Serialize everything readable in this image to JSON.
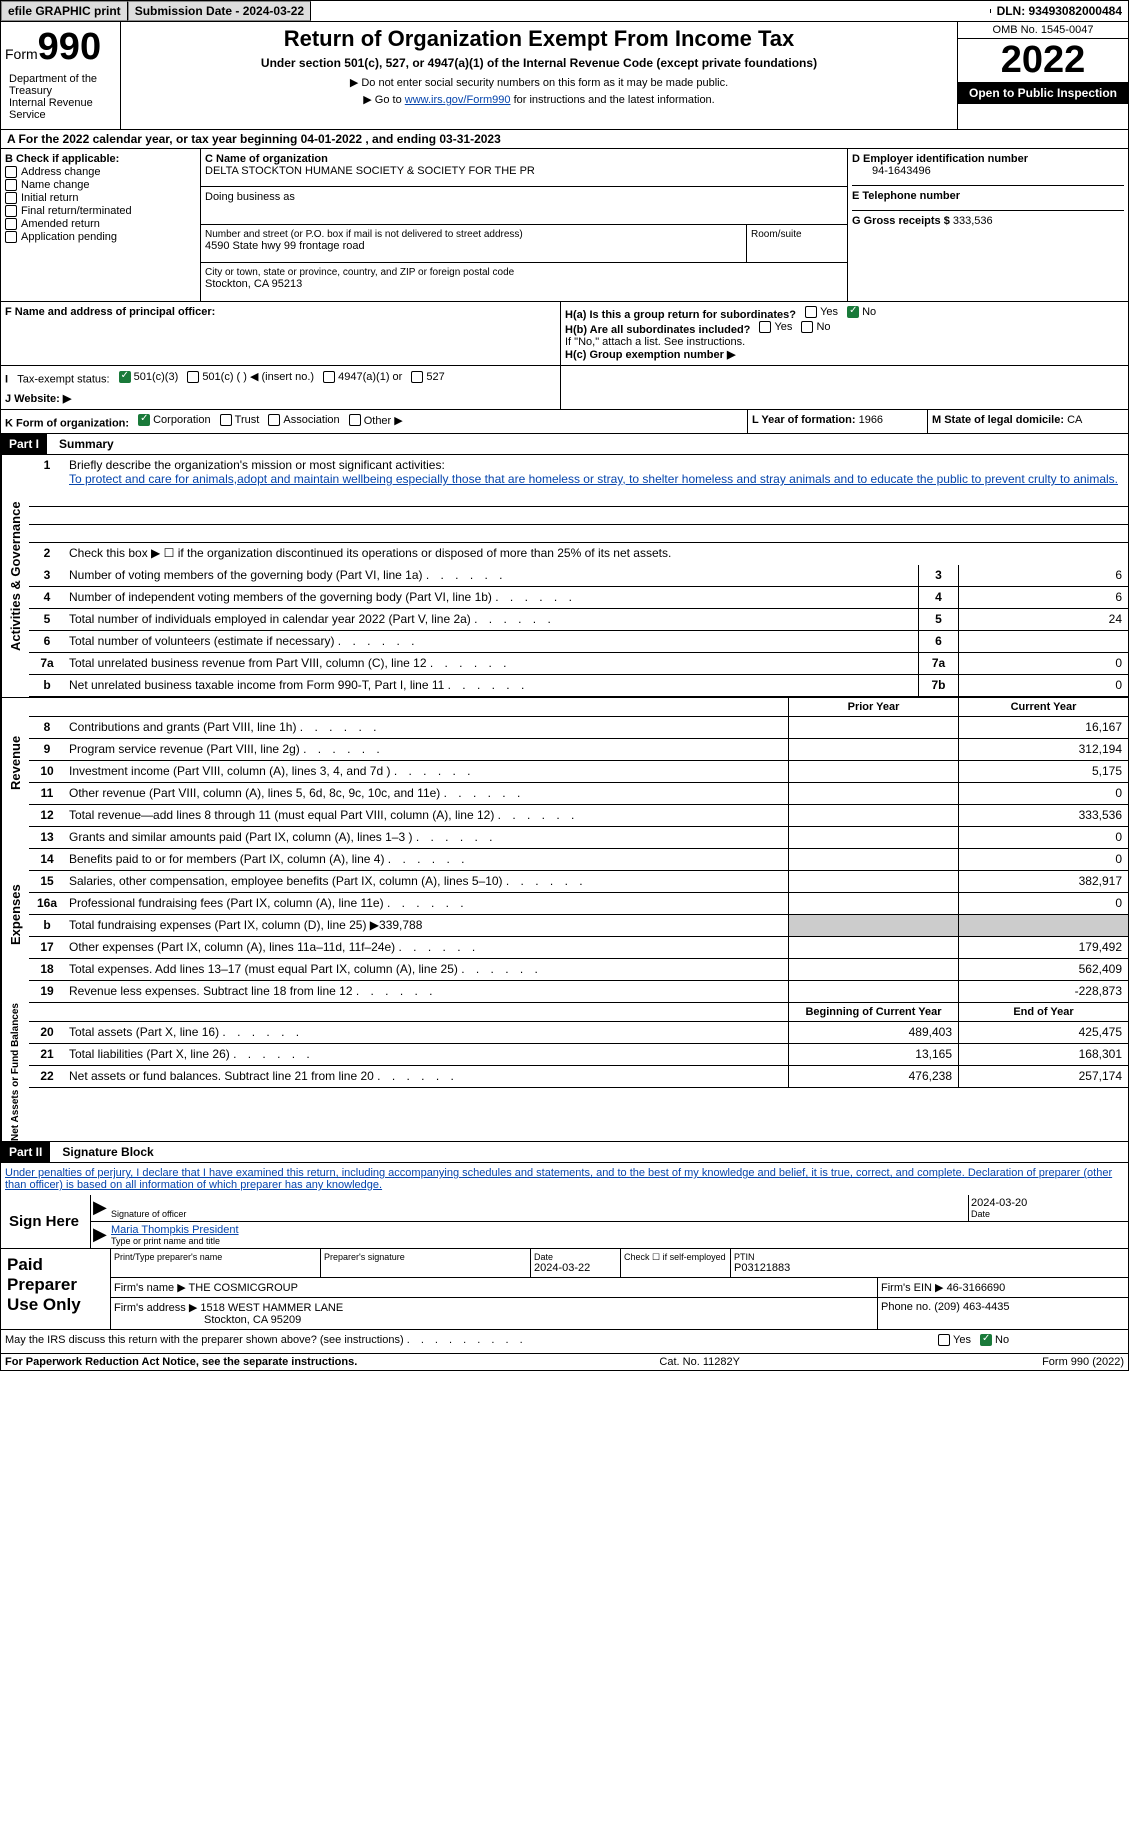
{
  "topbar": {
    "efile": "efile GRAPHIC print",
    "submission": "Submission Date - 2024-03-22",
    "dln": "DLN: 93493082000484"
  },
  "header": {
    "form_label": "Form",
    "form_number": "990",
    "title": "Return of Organization Exempt From Income Tax",
    "subtitle": "Under section 501(c), 527, or 4947(a)(1) of the Internal Revenue Code (except private foundations)",
    "note1": "▶ Do not enter social security numbers on this form as it may be made public.",
    "note2_pre": "▶ Go to ",
    "note2_link": "www.irs.gov/Form990",
    "note2_post": " for instructions and the latest information.",
    "dept": "Department of the Treasury\nInternal Revenue Service",
    "omb": "OMB No. 1545-0047",
    "year": "2022",
    "open_pub": "Open to Public Inspection"
  },
  "section_a": "A For the 2022 calendar year, or tax year beginning 04-01-2022    , and ending 03-31-2023",
  "box_b": {
    "label": "B Check if applicable:",
    "opts": [
      "Address change",
      "Name change",
      "Initial return",
      "Final return/terminated",
      "Amended return",
      "Application pending"
    ]
  },
  "box_c": {
    "name_label": "C Name of organization",
    "name": "DELTA STOCKTON HUMANE SOCIETY & SOCIETY FOR THE PR",
    "dba_label": "Doing business as",
    "dba": "",
    "addr_label": "Number and street (or P.O. box if mail is not delivered to street address)",
    "addr": "4590 State hwy 99 frontage road",
    "room_label": "Room/suite",
    "city_label": "City or town, state or province, country, and ZIP or foreign postal code",
    "city": "Stockton, CA  95213"
  },
  "box_d": {
    "label": "D Employer identification number",
    "ein": "94-1643496",
    "phone_label": "E Telephone number",
    "phone": "",
    "gross_label": "G Gross receipts $",
    "gross": "333,536"
  },
  "box_f": {
    "label": "F Name and address of principal officer:",
    "val": ""
  },
  "box_h": {
    "a_label": "H(a)  Is this a group return for subordinates?",
    "b_label": "H(b)  Are all subordinates included?",
    "b_note": "If \"No,\" attach a list. See instructions.",
    "c_label": "H(c)  Group exemption number ▶",
    "yes": "Yes",
    "no": "No"
  },
  "tax_status": {
    "label": "Tax-exempt status:",
    "o1": "501(c)(3)",
    "o2": "501(c) (  ) ◀ (insert no.)",
    "o3": "4947(a)(1) or",
    "o4": "527"
  },
  "website": {
    "label": "J   Website: ▶",
    "val": ""
  },
  "box_k": {
    "label": "K Form of organization:",
    "opts": [
      "Corporation",
      "Trust",
      "Association",
      "Other ▶"
    ]
  },
  "box_l": {
    "label": "L Year of formation:",
    "val": "1966"
  },
  "box_m": {
    "label": "M State of legal domicile:",
    "val": "CA"
  },
  "part1": {
    "hdr": "Part I",
    "title": "Summary",
    "side_a": "Activities & Governance",
    "side_r": "Revenue",
    "side_e": "Expenses",
    "side_n": "Net Assets or Fund Balances",
    "l1_label": "Briefly describe the organization's mission or most significant activities:",
    "l1_text": "To protect and care for animals,adopt and maintain wellbeing especially those that are homeless or stray, to shelter homeless and stray animals and to educate the public to prevent crulty to animals.",
    "l2": "Check this box ▶ ☐  if the organization discontinued its operations or disposed of more than 25% of its net assets.",
    "lines_a": [
      {
        "n": "3",
        "t": "Number of voting members of the governing body (Part VI, line 1a)",
        "c": "3",
        "v": "6"
      },
      {
        "n": "4",
        "t": "Number of independent voting members of the governing body (Part VI, line 1b)",
        "c": "4",
        "v": "6"
      },
      {
        "n": "5",
        "t": "Total number of individuals employed in calendar year 2022 (Part V, line 2a)",
        "c": "5",
        "v": "24"
      },
      {
        "n": "6",
        "t": "Total number of volunteers (estimate if necessary)",
        "c": "6",
        "v": ""
      },
      {
        "n": "7a",
        "t": "Total unrelated business revenue from Part VIII, column (C), line 12",
        "c": "7a",
        "v": "0"
      },
      {
        "n": "b",
        "t": "Net unrelated business taxable income from Form 990-T, Part I, line 11",
        "c": "7b",
        "v": "0"
      }
    ],
    "col_prior": "Prior Year",
    "col_current": "Current Year",
    "lines_r": [
      {
        "n": "8",
        "t": "Contributions and grants (Part VIII, line 1h)",
        "p": "",
        "v": "16,167"
      },
      {
        "n": "9",
        "t": "Program service revenue (Part VIII, line 2g)",
        "p": "",
        "v": "312,194"
      },
      {
        "n": "10",
        "t": "Investment income (Part VIII, column (A), lines 3, 4, and 7d )",
        "p": "",
        "v": "5,175"
      },
      {
        "n": "11",
        "t": "Other revenue (Part VIII, column (A), lines 5, 6d, 8c, 9c, 10c, and 11e)",
        "p": "",
        "v": "0"
      },
      {
        "n": "12",
        "t": "Total revenue—add lines 8 through 11 (must equal Part VIII, column (A), line 12)",
        "p": "",
        "v": "333,536"
      }
    ],
    "lines_e": [
      {
        "n": "13",
        "t": "Grants and similar amounts paid (Part IX, column (A), lines 1–3 )",
        "p": "",
        "v": "0"
      },
      {
        "n": "14",
        "t": "Benefits paid to or for members (Part IX, column (A), line 4)",
        "p": "",
        "v": "0"
      },
      {
        "n": "15",
        "t": "Salaries, other compensation, employee benefits (Part IX, column (A), lines 5–10)",
        "p": "",
        "v": "382,917"
      },
      {
        "n": "16a",
        "t": "Professional fundraising fees (Part IX, column (A), line 11e)",
        "p": "",
        "v": "0"
      },
      {
        "n": "b",
        "t": "Total fundraising expenses (Part IX, column (D), line 25) ▶339,788",
        "shade": true
      },
      {
        "n": "17",
        "t": "Other expenses (Part IX, column (A), lines 11a–11d, 11f–24e)",
        "p": "",
        "v": "179,492"
      },
      {
        "n": "18",
        "t": "Total expenses. Add lines 13–17 (must equal Part IX, column (A), line 25)",
        "p": "",
        "v": "562,409"
      },
      {
        "n": "19",
        "t": "Revenue less expenses. Subtract line 18 from line 12",
        "p": "",
        "v": "-228,873"
      }
    ],
    "col_begin": "Beginning of Current Year",
    "col_end": "End of Year",
    "lines_n": [
      {
        "n": "20",
        "t": "Total assets (Part X, line 16)",
        "p": "489,403",
        "v": "425,475"
      },
      {
        "n": "21",
        "t": "Total liabilities (Part X, line 26)",
        "p": "13,165",
        "v": "168,301"
      },
      {
        "n": "22",
        "t": "Net assets or fund balances. Subtract line 21 from line 20",
        "p": "476,238",
        "v": "257,174"
      }
    ]
  },
  "part2": {
    "hdr": "Part II",
    "title": "Signature Block",
    "penalties": "Under penalties of perjury, I declare that I have examined this return, including accompanying schedules and statements, and to the best of my knowledge and belief, it is true, correct, and complete. Declaration of preparer (other than officer) is based on all information of which preparer has any knowledge.",
    "sign_here": "Sign Here",
    "sig_officer_lbl": "Signature of officer",
    "sig_date": "2024-03-20",
    "sig_date_lbl": "Date",
    "sig_name": "Maria Thompkis President",
    "sig_name_lbl": "Type or print name and title",
    "paid": "Paid Preparer Use Only",
    "prep_name_lbl": "Print/Type preparer's name",
    "prep_sig_lbl": "Preparer's signature",
    "prep_date_lbl": "Date",
    "prep_date": "2024-03-22",
    "prep_check_lbl": "Check ☐ if self-employed",
    "ptin_lbl": "PTIN",
    "ptin": "P03121883",
    "firm_name_lbl": "Firm's name    ▶",
    "firm_name": "THE COSMICGROUP",
    "firm_ein_lbl": "Firm's EIN ▶",
    "firm_ein": "46-3166690",
    "firm_addr_lbl": "Firm's address ▶",
    "firm_addr": "1518 WEST HAMMER LANE",
    "firm_city": "Stockton, CA  95209",
    "firm_phone_lbl": "Phone no.",
    "firm_phone": "(209) 463-4435",
    "may_irs": "May the IRS discuss this return with the preparer shown above? (see instructions)"
  },
  "footer": {
    "left": "For Paperwork Reduction Act Notice, see the separate instructions.",
    "mid": "Cat. No. 11282Y",
    "right": "Form 990 (2022)"
  }
}
